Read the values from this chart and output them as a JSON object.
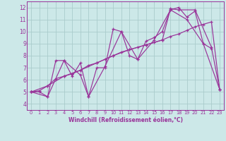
{
  "xlabel": "Windchill (Refroidissement éolien,°C)",
  "xlim": [
    -0.5,
    23.5
  ],
  "ylim": [
    3.5,
    12.5
  ],
  "xticks": [
    0,
    1,
    2,
    3,
    4,
    5,
    6,
    7,
    8,
    9,
    10,
    11,
    12,
    13,
    14,
    15,
    16,
    17,
    18,
    19,
    20,
    21,
    22,
    23
  ],
  "yticks": [
    4,
    5,
    6,
    7,
    8,
    9,
    10,
    11,
    12
  ],
  "bg_color": "#cce8e8",
  "line_color": "#993399",
  "grid_color": "#aacccc",
  "lines": [
    {
      "x": [
        0,
        1,
        2,
        3,
        4,
        5,
        6,
        7,
        8,
        9,
        10,
        11,
        12,
        13,
        14,
        15,
        16,
        17,
        18,
        19,
        20,
        21,
        22
      ],
      "y": [
        5.0,
        5.0,
        4.6,
        7.6,
        7.6,
        6.3,
        7.4,
        4.6,
        7.0,
        7.0,
        10.2,
        10.0,
        8.0,
        7.7,
        9.2,
        9.5,
        10.0,
        11.8,
        12.0,
        11.2,
        11.7,
        9.0,
        8.6
      ]
    },
    {
      "x": [
        0,
        1,
        2,
        3,
        4,
        5,
        6,
        7,
        8,
        9,
        10,
        11,
        12,
        13,
        14,
        15,
        16,
        17,
        18,
        19,
        20,
        21,
        22,
        23
      ],
      "y": [
        5.0,
        5.1,
        5.5,
        6.1,
        6.3,
        6.5,
        6.8,
        7.2,
        7.4,
        7.7,
        8.0,
        8.3,
        8.5,
        8.7,
        8.9,
        9.1,
        9.3,
        9.6,
        9.8,
        10.1,
        10.4,
        10.6,
        10.8,
        5.2
      ]
    },
    {
      "x": [
        0,
        2,
        4,
        6,
        8,
        10,
        12,
        14,
        16,
        17,
        18,
        20,
        22,
        23
      ],
      "y": [
        5.0,
        5.5,
        6.3,
        6.8,
        7.4,
        8.0,
        8.5,
        8.9,
        9.3,
        11.9,
        11.8,
        11.8,
        8.7,
        5.2
      ]
    },
    {
      "x": [
        0,
        2,
        4,
        6,
        7,
        9,
        11,
        13,
        15,
        17,
        19,
        21,
        23
      ],
      "y": [
        5.0,
        4.6,
        7.6,
        6.4,
        4.6,
        7.1,
        10.0,
        7.7,
        9.3,
        11.8,
        11.0,
        9.0,
        5.2
      ]
    }
  ]
}
